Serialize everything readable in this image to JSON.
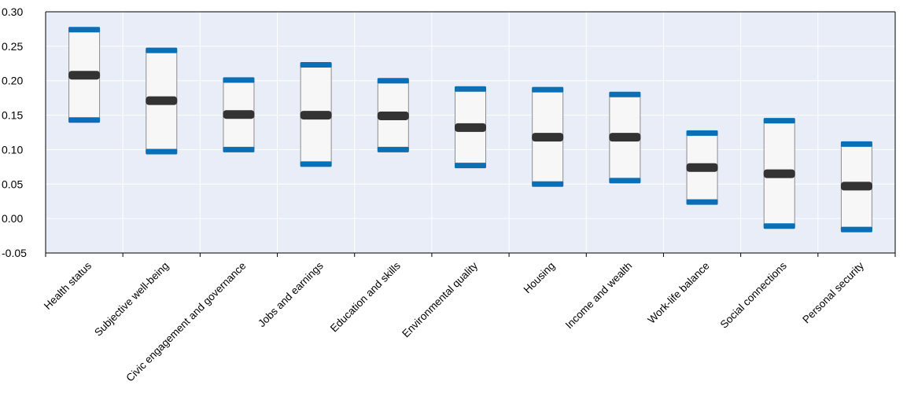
{
  "chart_data": {
    "type": "box",
    "categories": [
      "Health status",
      "Subjective well-being",
      "Civic engagement and governance",
      "Jobs and earnings",
      "Education and skills",
      "Environmental quality",
      "Housing",
      "Income and wealth",
      "Work-life balance",
      "Social connections",
      "Personal security"
    ],
    "series": [
      {
        "low": [
          0.143,
          0.097,
          0.1,
          0.079,
          0.1,
          0.077,
          0.05,
          0.055,
          0.024,
          -0.011,
          -0.016
        ],
        "median": [
          0.208,
          0.171,
          0.151,
          0.15,
          0.149,
          0.132,
          0.118,
          0.118,
          0.074,
          0.065,
          0.047
        ],
        "high": [
          0.274,
          0.244,
          0.201,
          0.223,
          0.2,
          0.188,
          0.187,
          0.18,
          0.124,
          0.142,
          0.108
        ]
      }
    ],
    "yticks": [
      0.3,
      0.25,
      0.2,
      0.15,
      0.1,
      0.05,
      0.0,
      -0.05
    ],
    "ylim": [
      -0.05,
      0.3
    ],
    "grid": true,
    "colors": {
      "plot_background": "#e8edf8",
      "gridline": "#ffffff",
      "box_fill": "#f7f7f7",
      "box_border": "#8c8c8c",
      "whisker": "#0b6fb5",
      "median": "#333333",
      "axis": "#000000"
    }
  }
}
